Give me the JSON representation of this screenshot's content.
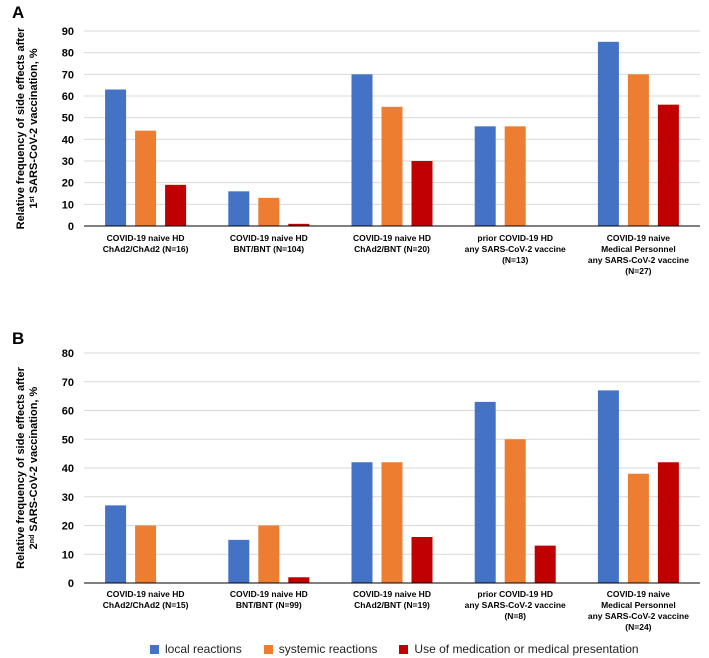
{
  "colors": {
    "local": "#4472C4",
    "systemic": "#ED7D31",
    "medication": "#C00000",
    "grid": "#d9d9d9",
    "axis": "#000000"
  },
  "legend": [
    {
      "key": "local",
      "label": "local reactions",
      "color": "#4472C4"
    },
    {
      "key": "systemic",
      "label": "systemic reactions",
      "color": "#ED7D31"
    },
    {
      "key": "medication",
      "label": "Use of medication or medical presentation",
      "color": "#C00000"
    }
  ],
  "chart_data": [
    {
      "type": "bar",
      "panel": "A",
      "ylabel_lines": [
        "Relative frequency of side effects after",
        "1st SARS-CoV-2 vaccination, %"
      ],
      "ylim": [
        0,
        90
      ],
      "yticks": [
        0,
        10,
        20,
        30,
        40,
        50,
        60,
        70,
        80,
        90
      ],
      "grid": true,
      "categories": [
        [
          "COVID-19 naive HD",
          "ChAd2/ChAd2 (N=16)"
        ],
        [
          "COVID-19 naive HD",
          "BNT/BNT (N=104)"
        ],
        [
          "COVID-19 naive HD",
          "ChAd2/BNT (N=20)"
        ],
        [
          "prior COVID-19 HD",
          "any SARS-CoV-2 vaccine",
          "(N=13)"
        ],
        [
          "COVID-19 naive",
          "Medical Personnel",
          "any SARS-CoV-2 vaccine",
          "(N=27)"
        ]
      ],
      "series": [
        {
          "name": "local reactions",
          "key": "local",
          "values": [
            63,
            16,
            70,
            46,
            85
          ]
        },
        {
          "name": "systemic reactions",
          "key": "systemic",
          "values": [
            44,
            13,
            55,
            46,
            70
          ]
        },
        {
          "name": "Use of medication or medical presentation",
          "key": "medication",
          "values": [
            19,
            1,
            30,
            0,
            56
          ]
        }
      ]
    },
    {
      "type": "bar",
      "panel": "B",
      "ylabel_lines": [
        "Relative frequency of side effects after",
        "2nd SARS-CoV-2 vaccination, %"
      ],
      "ylim": [
        0,
        80
      ],
      "yticks": [
        0,
        10,
        20,
        30,
        40,
        50,
        60,
        70,
        80
      ],
      "grid": true,
      "categories": [
        [
          "COVID-19 naive HD",
          "ChAd2/ChAd2 (N=15)"
        ],
        [
          "COVID-19 naive HD",
          "BNT/BNT (N=99)"
        ],
        [
          "COVID-19 naive HD",
          "ChAd2/BNT (N=19)"
        ],
        [
          "prior COVID-19 HD",
          "any SARS-CoV-2 vaccine",
          "(N=8)"
        ],
        [
          "COVID-19 naive",
          "Medical Personnel",
          "any SARS-CoV-2 vaccine",
          "(N=24)"
        ]
      ],
      "series": [
        {
          "name": "local reactions",
          "key": "local",
          "values": [
            27,
            15,
            42,
            63,
            67
          ]
        },
        {
          "name": "systemic reactions",
          "key": "systemic",
          "values": [
            20,
            20,
            42,
            50,
            38
          ]
        },
        {
          "name": "Use of medication or medical presentation",
          "key": "medication",
          "values": [
            0,
            2,
            16,
            13,
            42
          ]
        }
      ]
    }
  ]
}
